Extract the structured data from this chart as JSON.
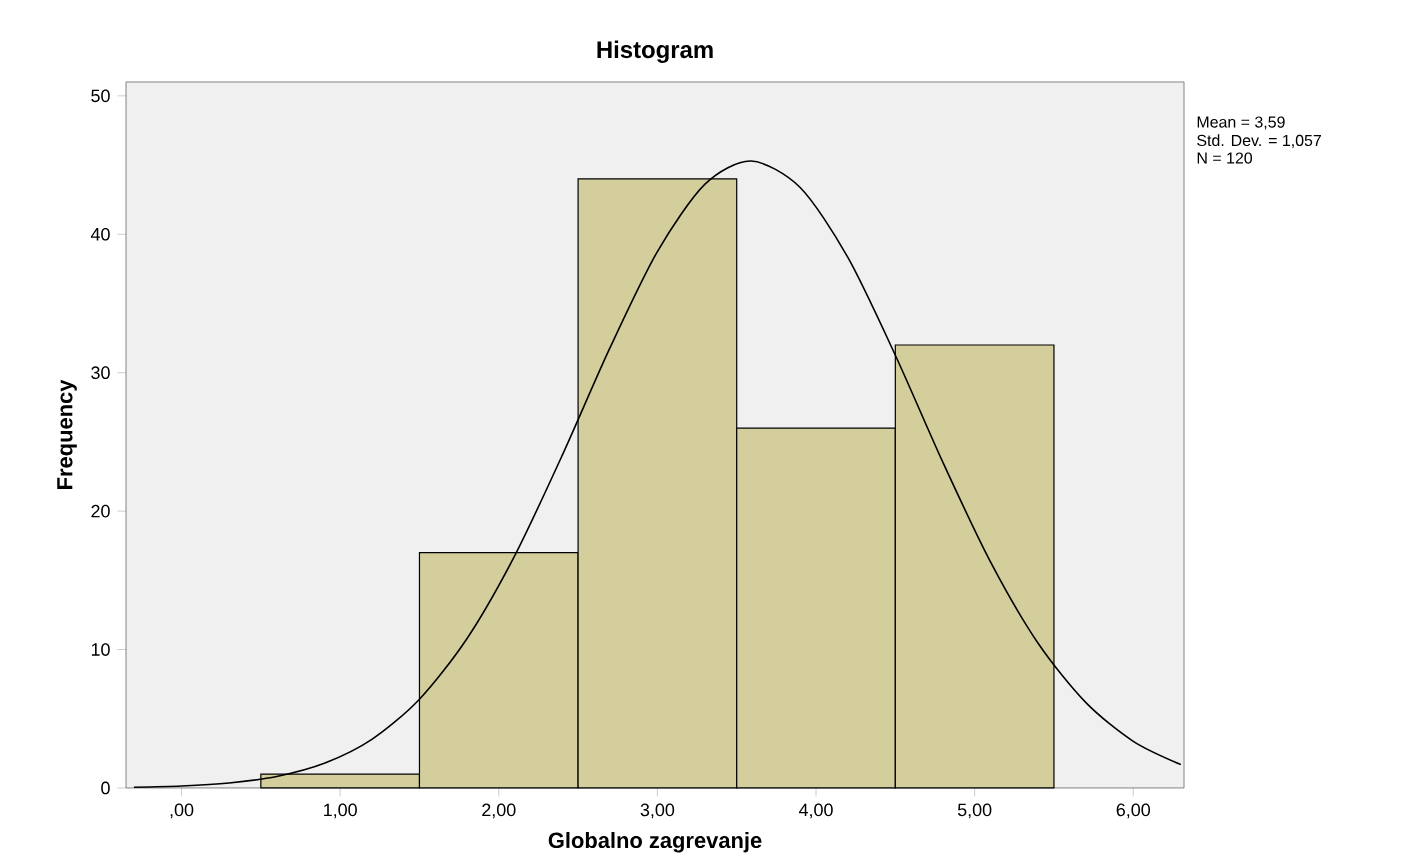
{
  "chart_data": {
    "type": "histogram",
    "title": "Histogram",
    "xlabel": "Globalno zagrevanje",
    "ylabel": "Frequency",
    "bins": [
      0.5,
      1.5,
      2.5,
      3.5,
      4.5,
      5.5
    ],
    "values": [
      1,
      17,
      44,
      26,
      32
    ],
    "color": "#d3ce9c",
    "series": [
      {
        "type": "line",
        "color": "#000000",
        "x": [
          -0.3,
          0,
          0.3,
          0.6,
          0.9,
          1.2,
          1.5,
          1.8,
          2.1,
          2.4,
          2.7,
          3.0,
          3.3,
          3.59,
          3.9,
          4.2,
          4.5,
          4.8,
          5.1,
          5.4,
          5.7,
          6.0,
          6.3
        ],
        "values": [
          0.05,
          0.14,
          0.36,
          0.83,
          1.78,
          3.51,
          6.41,
          10.8,
          16.77,
          24.03,
          31.77,
          38.75,
          43.62,
          45.29,
          43.38,
          38.34,
          31.26,
          23.52,
          16.33,
          10.45,
          6.18,
          3.37,
          1.69
        ]
      }
    ],
    "xlim": [
      -0.35,
      6.32
    ],
    "ylim": [
      0,
      51
    ],
    "xticks": [
      {
        "value": 0,
        "label": ",00"
      },
      {
        "value": 1,
        "label": "1,00"
      },
      {
        "value": 2,
        "label": "2,00"
      },
      {
        "value": 3,
        "label": "3,00"
      },
      {
        "value": 4,
        "label": "4,00"
      },
      {
        "value": 5,
        "label": "5,00"
      },
      {
        "value": 6,
        "label": "6,00"
      }
    ],
    "yticks": [
      0,
      10,
      20,
      30,
      40,
      50
    ],
    "annotations": [
      "Mean = 3,59",
      "Std. Dev. = 1,057",
      "N = 120"
    ]
  }
}
